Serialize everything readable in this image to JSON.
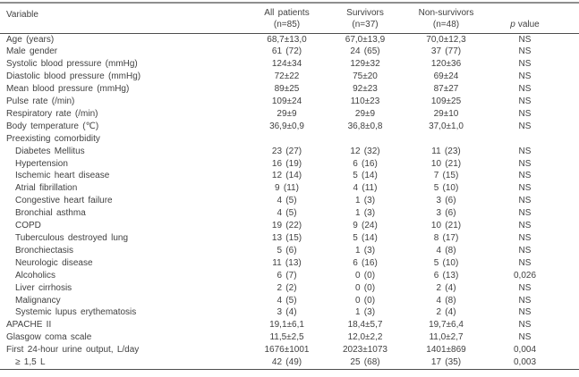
{
  "table": {
    "title_hidden": "",
    "columns": [
      {
        "label": "Variable",
        "sublabel": ""
      },
      {
        "label": "All patients",
        "sublabel": "(n=85)"
      },
      {
        "label": "Survivors",
        "sublabel": "(n=37)"
      },
      {
        "label": "Non-survivors",
        "sublabel": "(n=48)"
      },
      {
        "label": "p value",
        "italic_part": "p",
        "rest_part": "value"
      }
    ],
    "rows": [
      {
        "variable": "Age (years)",
        "indent": 0,
        "all": "68,7±13,0",
        "surv": "67,0±13,9",
        "nonsurv": "70,0±12,3",
        "p": "NS"
      },
      {
        "variable": "Male gender",
        "indent": 0,
        "all": "61 (72)",
        "surv": "24 (65)",
        "nonsurv": "37 (77)",
        "p": "NS"
      },
      {
        "variable": "Systolic blood pressure (mmHg)",
        "indent": 0,
        "all": "124±34",
        "surv": "129±32",
        "nonsurv": "120±36",
        "p": "NS"
      },
      {
        "variable": "Diastolic blood pressure (mmHg)",
        "indent": 0,
        "all": "72±22",
        "surv": "75±20",
        "nonsurv": "69±24",
        "p": "NS"
      },
      {
        "variable": "Mean blood pressure (mmHg)",
        "indent": 0,
        "all": "89±25",
        "surv": "92±23",
        "nonsurv": "87±27",
        "p": "NS"
      },
      {
        "variable": "Pulse rate (/min)",
        "indent": 0,
        "all": "109±24",
        "surv": "110±23",
        "nonsurv": "109±25",
        "p": "NS"
      },
      {
        "variable": "Respiratory rate (/min)",
        "indent": 0,
        "all": "29±9",
        "surv": "29±9",
        "nonsurv": "29±10",
        "p": "NS"
      },
      {
        "variable": "Body temperature (℃)",
        "indent": 0,
        "all": "36,9±0,9",
        "surv": "36,8±0,8",
        "nonsurv": "37,0±1,0",
        "p": "NS"
      },
      {
        "variable": "Preexisting comorbidity",
        "indent": 0,
        "all": "",
        "surv": "",
        "nonsurv": "",
        "p": ""
      },
      {
        "variable": "Diabetes Mellitus",
        "indent": 1,
        "all": "23 (27)",
        "surv": "12 (32)",
        "nonsurv": "11 (23)",
        "p": "NS"
      },
      {
        "variable": "Hypertension",
        "indent": 1,
        "all": "16 (19)",
        "surv": "6 (16)",
        "nonsurv": "10 (21)",
        "p": "NS"
      },
      {
        "variable": "Ischemic heart disease",
        "indent": 1,
        "all": "12 (14)",
        "surv": "5 (14)",
        "nonsurv": "7 (15)",
        "p": "NS"
      },
      {
        "variable": "Atrial fibrillation",
        "indent": 1,
        "all": "9 (11)",
        "surv": "4 (11)",
        "nonsurv": "5 (10)",
        "p": "NS"
      },
      {
        "variable": "Congestive heart failure",
        "indent": 1,
        "all": "4 (5)",
        "surv": "1 (3)",
        "nonsurv": "3 (6)",
        "p": "NS"
      },
      {
        "variable": "Bronchial asthma",
        "indent": 1,
        "all": "4 (5)",
        "surv": "1 (3)",
        "nonsurv": "3 (6)",
        "p": "NS"
      },
      {
        "variable": "COPD",
        "indent": 1,
        "all": "19 (22)",
        "surv": "9 (24)",
        "nonsurv": "10 (21)",
        "p": "NS"
      },
      {
        "variable": "Tuberculous destroyed lung",
        "indent": 1,
        "all": "13 (15)",
        "surv": "5 (14)",
        "nonsurv": "8 (17)",
        "p": "NS"
      },
      {
        "variable": "Bronchiectasis",
        "indent": 1,
        "all": "5 (6)",
        "surv": "1 (3)",
        "nonsurv": "4 (8)",
        "p": "NS"
      },
      {
        "variable": "Neurologic disease",
        "indent": 1,
        "all": "11 (13)",
        "surv": "6 (16)",
        "nonsurv": "5 (10)",
        "p": "NS"
      },
      {
        "variable": "Alcoholics",
        "indent": 1,
        "all": "6 (7)",
        "surv": "0 (0)",
        "nonsurv": "6 (13)",
        "p": "0,026"
      },
      {
        "variable": "Liver cirrhosis",
        "indent": 1,
        "all": "2 (2)",
        "surv": "0 (0)",
        "nonsurv": "2 (4)",
        "p": "NS"
      },
      {
        "variable": "Malignancy",
        "indent": 1,
        "all": "4 (5)",
        "surv": "0 (0)",
        "nonsurv": "4 (8)",
        "p": "NS"
      },
      {
        "variable": "Systemic lupus erythematosis",
        "indent": 1,
        "all": "3 (4)",
        "surv": "1 (3)",
        "nonsurv": "2 (4)",
        "p": "NS"
      },
      {
        "variable": "APACHE II",
        "indent": 0,
        "all": "19,1±6,1",
        "surv": "18,4±5,7",
        "nonsurv": "19,7±6,4",
        "p": "NS"
      },
      {
        "variable": "Glasgow coma scale",
        "indent": 0,
        "all": "11,5±2,5",
        "surv": "12,0±2,2",
        "nonsurv": "11,0±2,7",
        "p": "NS"
      },
      {
        "variable": "First 24-hour urine output, L/day",
        "indent": 0,
        "all": "1676±1001",
        "surv": "2023±1073",
        "nonsurv": "1401±869",
        "p": "0,004"
      },
      {
        "variable": "≥ 1,5 L",
        "indent": 1,
        "all": "42 (49)",
        "surv": "25 (68)",
        "nonsurv": "17 (35)",
        "p": "0,003"
      }
    ]
  }
}
